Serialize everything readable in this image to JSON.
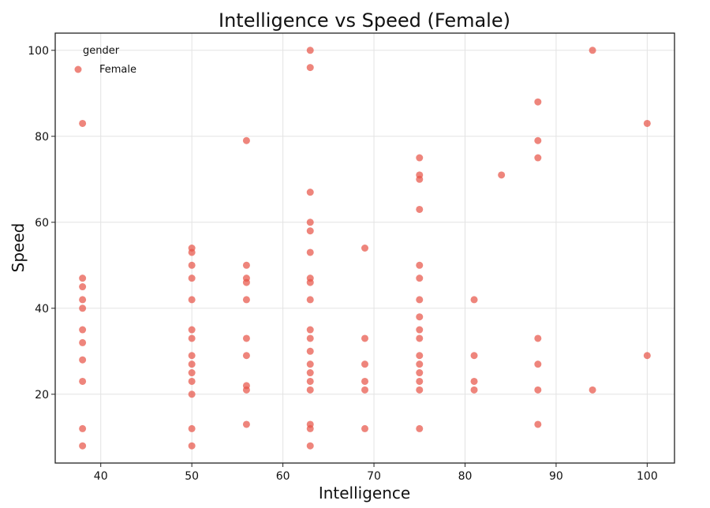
{
  "chart_data": {
    "type": "scatter",
    "title": "Intelligence vs Speed (Female)",
    "xlabel": "Intelligence",
    "ylabel": "Speed",
    "xlim": [
      35,
      103
    ],
    "ylim": [
      4,
      104
    ],
    "xticks": [
      40,
      50,
      60,
      70,
      80,
      90,
      100
    ],
    "yticks": [
      20,
      40,
      60,
      80,
      100
    ],
    "grid": true,
    "legend": {
      "title": "gender",
      "placement": "top-left",
      "entries": [
        "Female"
      ]
    },
    "series": [
      {
        "name": "Female",
        "color": "#e8564a",
        "points": [
          [
            38,
            83
          ],
          [
            38,
            47
          ],
          [
            38,
            45
          ],
          [
            38,
            42
          ],
          [
            38,
            40
          ],
          [
            38,
            35
          ],
          [
            38,
            32
          ],
          [
            38,
            28
          ],
          [
            38,
            23
          ],
          [
            38,
            12
          ],
          [
            38,
            8
          ],
          [
            50,
            54
          ],
          [
            50,
            53
          ],
          [
            50,
            50
          ],
          [
            50,
            47
          ],
          [
            50,
            42
          ],
          [
            50,
            35
          ],
          [
            50,
            33
          ],
          [
            50,
            29
          ],
          [
            50,
            27
          ],
          [
            50,
            25
          ],
          [
            50,
            23
          ],
          [
            50,
            20
          ],
          [
            50,
            12
          ],
          [
            50,
            8
          ],
          [
            56,
            79
          ],
          [
            56,
            50
          ],
          [
            56,
            47
          ],
          [
            56,
            46
          ],
          [
            56,
            42
          ],
          [
            56,
            33
          ],
          [
            56,
            29
          ],
          [
            56,
            22
          ],
          [
            56,
            21
          ],
          [
            56,
            13
          ],
          [
            63,
            100
          ],
          [
            63,
            96
          ],
          [
            63,
            67
          ],
          [
            63,
            60
          ],
          [
            63,
            58
          ],
          [
            63,
            53
          ],
          [
            63,
            47
          ],
          [
            63,
            46
          ],
          [
            63,
            42
          ],
          [
            63,
            35
          ],
          [
            63,
            33
          ],
          [
            63,
            30
          ],
          [
            63,
            27
          ],
          [
            63,
            25
          ],
          [
            63,
            23
          ],
          [
            63,
            21
          ],
          [
            63,
            13
          ],
          [
            63,
            12
          ],
          [
            63,
            8
          ],
          [
            69,
            54
          ],
          [
            69,
            33
          ],
          [
            69,
            27
          ],
          [
            69,
            23
          ],
          [
            69,
            21
          ],
          [
            69,
            12
          ],
          [
            75,
            75
          ],
          [
            75,
            71
          ],
          [
            75,
            70
          ],
          [
            75,
            63
          ],
          [
            75,
            50
          ],
          [
            75,
            47
          ],
          [
            75,
            42
          ],
          [
            75,
            38
          ],
          [
            75,
            35
          ],
          [
            75,
            33
          ],
          [
            75,
            29
          ],
          [
            75,
            27
          ],
          [
            75,
            25
          ],
          [
            75,
            23
          ],
          [
            75,
            21
          ],
          [
            75,
            12
          ],
          [
            81,
            42
          ],
          [
            81,
            29
          ],
          [
            81,
            23
          ],
          [
            81,
            21
          ],
          [
            84,
            71
          ],
          [
            88,
            88
          ],
          [
            88,
            79
          ],
          [
            88,
            75
          ],
          [
            88,
            33
          ],
          [
            88,
            27
          ],
          [
            88,
            21
          ],
          [
            88,
            13
          ],
          [
            94,
            100
          ],
          [
            94,
            21
          ],
          [
            100,
            83
          ],
          [
            100,
            29
          ]
        ]
      }
    ]
  }
}
